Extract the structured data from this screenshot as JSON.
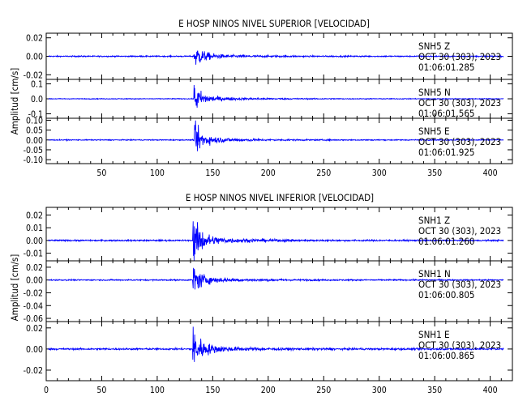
{
  "chart_data": {
    "type": "line",
    "line_color": "#0000ff",
    "x_ticks": [
      50,
      100,
      150,
      200,
      250,
      300,
      350,
      400
    ],
    "x_ticks_bottom": [
      0,
      50,
      100,
      150,
      200,
      250,
      300,
      350,
      400
    ],
    "panels": [
      {
        "title": "E HOSP NINOS NIVEL SUPERIOR [VELOCIDAD]",
        "ylabel": "Amplitud [cm/s]",
        "traces": [
          {
            "station": "SNH5",
            "component": "Z",
            "date": "OCT 30 (303), 2023",
            "time": "01:06:01.285",
            "yticks": [
              "0.02",
              "0.00",
              "-0.02"
            ],
            "ylim": [
              -0.025,
              0.025
            ],
            "noise": 0.0008,
            "peak": 0.016,
            "onset": 133
          },
          {
            "station": "SNH5",
            "component": "N",
            "date": "OCT 30 (303), 2023",
            "time": "01:06:01.565",
            "yticks": [
              "0.1",
              "0.0",
              "-0.1"
            ],
            "ylim": [
              -0.13,
              0.13
            ],
            "noise": 0.003,
            "peak": 0.11,
            "onset": 133
          },
          {
            "station": "SNH5",
            "component": "E",
            "date": "OCT 30 (303), 2023",
            "time": "01:06:01.925",
            "yticks": [
              "0.10",
              "0.05",
              "0.00",
              "-0.05",
              "-0.10"
            ],
            "ylim": [
              -0.12,
              0.11
            ],
            "noise": 0.003,
            "peak": 0.1,
            "onset": 133
          }
        ]
      },
      {
        "title": "E HOSP NINOS NIVEL INFERIOR [VELOCIDAD]",
        "ylabel": "Amplitud [cm/s]",
        "traces": [
          {
            "station": "SNH1",
            "component": "Z",
            "date": "OCT 30 (303), 2023",
            "time": "01:06:01.260",
            "yticks": [
              "0.02",
              "0.01",
              "0.00",
              "-0.01"
            ],
            "ylim": [
              -0.016,
              0.026
            ],
            "noise": 0.0007,
            "peak": 0.022,
            "onset": 132
          },
          {
            "station": "SNH1",
            "component": "N",
            "date": "OCT 30 (303), 2023",
            "time": "01:06:00.805",
            "yticks": [
              "0.02",
              "0.00",
              "-0.02",
              "-0.04",
              "-0.06"
            ],
            "ylim": [
              -0.065,
              0.03
            ],
            "noise": 0.0012,
            "peak": 0.028,
            "onset": 132
          },
          {
            "station": "SNH1",
            "component": "E",
            "date": "OCT 30 (303), 2023",
            "time": "01:06:00.865",
            "yticks": [
              "0.02",
              "0.00",
              "-0.02"
            ],
            "ylim": [
              -0.03,
              0.026
            ],
            "noise": 0.001,
            "peak": 0.023,
            "onset": 132
          }
        ]
      }
    ],
    "xlim": [
      0,
      420
    ]
  }
}
